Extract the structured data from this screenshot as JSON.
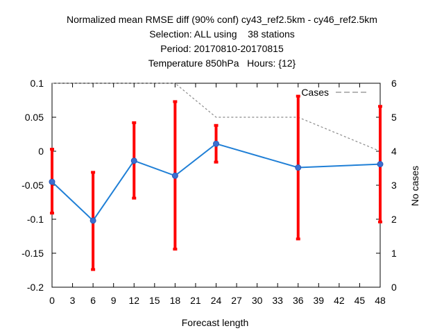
{
  "title": {
    "line1": "Normalized mean RMSE diff (90% conf) cy43_ref2.5km - cy46_ref2.5km",
    "line2": "Selection: ALL using    38 stations",
    "line3": "Period: 20170810-20170815",
    "line4": "Temperature 850hPa   Hours: {12}"
  },
  "chart_data": {
    "type": "line",
    "xlabel": "Forecast length",
    "ylabel": "",
    "y2label": "No cases",
    "xlim": [
      0,
      48
    ],
    "ylim": [
      -0.2,
      0.1
    ],
    "y2lim": [
      0,
      6
    ],
    "xticks": [
      0,
      3,
      6,
      9,
      12,
      15,
      18,
      21,
      24,
      27,
      30,
      33,
      36,
      39,
      42,
      45,
      48
    ],
    "yticks": [
      -0.2,
      -0.15,
      -0.1,
      -0.05,
      0,
      0.05,
      0.1
    ],
    "ytick_labels": [
      "-0.2",
      "-0.15",
      "-0.1",
      "-0.05",
      "0",
      "0.05",
      "0.1"
    ],
    "y2ticks": [
      0,
      1,
      2,
      3,
      4,
      5,
      6
    ],
    "grid": false,
    "legend": {
      "placement": "top-right",
      "entries": [
        "Cases"
      ]
    },
    "series": [
      {
        "name": "",
        "color": "#1f7fd6",
        "x": [
          0,
          6,
          12,
          18,
          24,
          36,
          48
        ],
        "values": [
          -0.045,
          -0.102,
          -0.014,
          -0.036,
          0.011,
          -0.024,
          -0.019
        ],
        "err_low": [
          -0.091,
          -0.174,
          -0.069,
          -0.144,
          -0.016,
          -0.129,
          -0.104
        ],
        "err_high": [
          0.003,
          -0.031,
          0.042,
          0.073,
          0.038,
          0.081,
          0.066
        ],
        "err_color": "#ff0000"
      },
      {
        "name": "Cases",
        "axis": "y2",
        "style": "dashed",
        "color": "#8a8a8a",
        "x": [
          0,
          6,
          12,
          18,
          24,
          36,
          48
        ],
        "values": [
          6,
          6,
          6,
          6,
          5,
          5,
          4
        ]
      }
    ]
  }
}
